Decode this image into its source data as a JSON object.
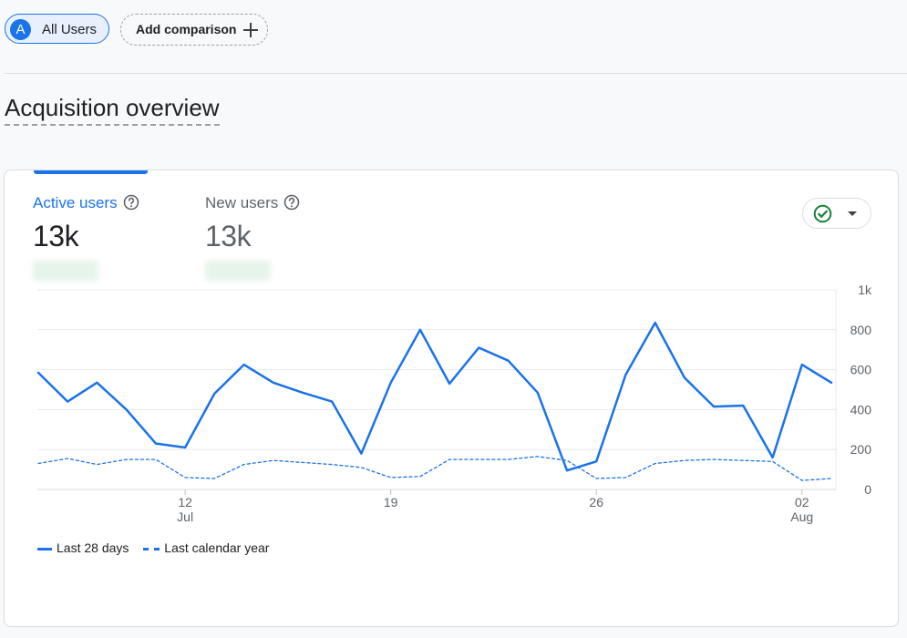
{
  "top_bar": {
    "segment_chip": {
      "letter": "A",
      "label": "All Users"
    },
    "add_comparison_label": "Add comparison"
  },
  "page_title": "Acquisition overview",
  "card": {
    "metrics": [
      {
        "label": "Active users",
        "value": "13k"
      },
      {
        "label": "New users",
        "value": "13k"
      }
    ]
  },
  "colors": {
    "accent": "#1a73e8",
    "check": "#188038"
  },
  "icons": [
    "plus-icon",
    "help-icon",
    "check-circle-icon",
    "caret-down-icon"
  ],
  "chart_data": {
    "type": "line",
    "x_ticks": [
      {
        "day": "12",
        "month": "Jul",
        "index": 5
      },
      {
        "day": "19",
        "month": "",
        "index": 12
      },
      {
        "day": "26",
        "month": "",
        "index": 19
      },
      {
        "day": "02",
        "month": "Aug",
        "index": 26
      }
    ],
    "y_ticks": [
      "0",
      "200",
      "400",
      "600",
      "800",
      "1k"
    ],
    "ylim": [
      0,
      1000
    ],
    "series": [
      {
        "name": "Last 28 days",
        "style": "solid",
        "values": [
          585,
          440,
          535,
          400,
          230,
          210,
          480,
          625,
          535,
          485,
          440,
          180,
          535,
          800,
          530,
          710,
          645,
          485,
          95,
          140,
          575,
          835,
          560,
          415,
          420,
          160,
          625,
          535
        ]
      },
      {
        "name": "Last calendar year",
        "style": "dashed",
        "values": [
          130,
          155,
          125,
          150,
          150,
          60,
          55,
          125,
          145,
          135,
          125,
          110,
          60,
          65,
          150,
          150,
          150,
          165,
          145,
          55,
          60,
          130,
          145,
          150,
          145,
          140,
          45,
          55
        ]
      }
    ],
    "legend_placement": "bottom-left",
    "grid": true
  }
}
